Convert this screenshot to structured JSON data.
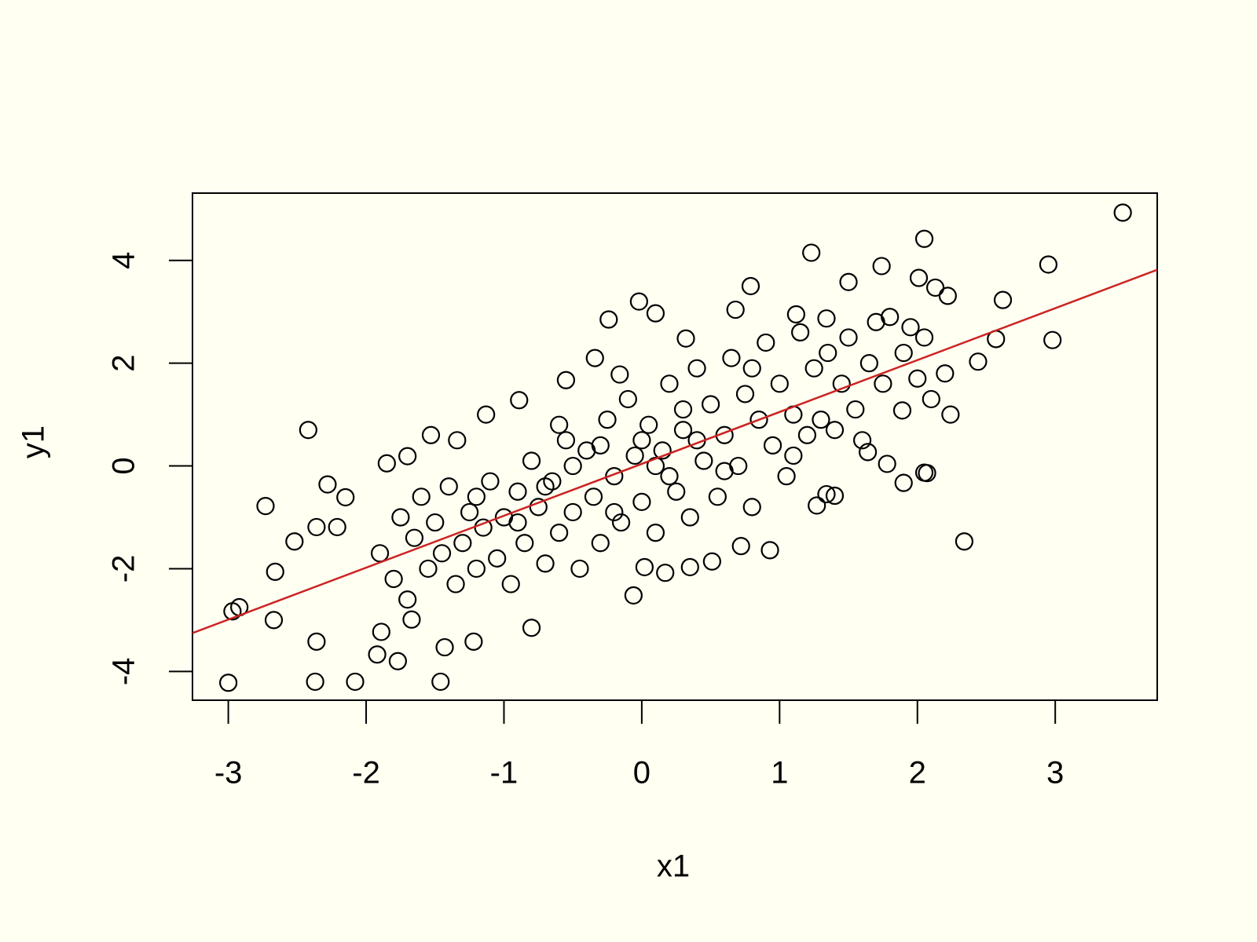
{
  "chart_data": {
    "type": "scatter",
    "x_label": "x1",
    "y_label": "y1",
    "xlim": [
      -3.26,
      3.74
    ],
    "ylim": [
      -4.56,
      5.31
    ],
    "xticks": [
      -3,
      -2,
      -1,
      0,
      1,
      2,
      3
    ],
    "yticks": [
      -4,
      -2,
      0,
      2,
      4
    ],
    "grid": false,
    "fit_line": {
      "intercept": 0.04,
      "slope": 1.01,
      "color": "#cc2222"
    },
    "series": [
      {
        "color": "#000000",
        "x": [
          3.49,
          2.95,
          2.98,
          2.62,
          2.34,
          2.05,
          1.23,
          -3.0,
          -2.37,
          -2.08,
          -1.46,
          -2.97,
          -2.92,
          -2.67,
          -2.66,
          -2.73,
          -2.42,
          -2.52,
          -2.36,
          -2.28,
          -2.36,
          -2.21,
          -2.15,
          -0.8,
          -0.06,
          -0.02,
          0.1,
          0.79,
          1.74,
          1.5,
          2.01,
          2.13,
          2.22,
          2.57,
          2.44,
          2.24,
          1.89,
          2.05,
          2.07,
          1.9,
          1.78,
          1.64,
          0.93,
          0.72,
          0.51,
          0.35,
          0.17,
          0.02,
          -0.24,
          -0.34,
          -1.77,
          -1.92,
          -1.89,
          -1.22,
          -1.43,
          -1.67,
          -1.85,
          -1.7,
          -1.13,
          -1.53,
          -1.34,
          -0.89,
          -0.55,
          -0.16,
          0.32,
          0.68,
          1.12,
          1.34,
          1.34,
          1.4,
          1.27,
          -1.9,
          -1.8,
          -1.75,
          -1.7,
          -1.65,
          -1.6,
          -1.55,
          -1.5,
          -1.45,
          -1.4,
          -1.35,
          -1.3,
          -1.25,
          -1.2,
          -1.15,
          -1.1,
          -1.05,
          -1.0,
          -0.95,
          -0.9,
          -0.85,
          -0.8,
          -0.75,
          -0.7,
          -0.65,
          -0.6,
          -0.55,
          -0.5,
          -0.45,
          -0.4,
          -0.35,
          -0.3,
          -0.25,
          -0.2,
          -0.15,
          -0.1,
          -0.05,
          0.0,
          0.05,
          0.1,
          0.15,
          0.2,
          0.25,
          0.3,
          0.35,
          0.4,
          0.45,
          0.5,
          0.55,
          0.6,
          0.65,
          0.7,
          0.75,
          0.8,
          0.85,
          0.9,
          0.95,
          1.0,
          1.05,
          1.1,
          1.15,
          1.2,
          1.25,
          1.3,
          1.35,
          1.4,
          1.45,
          1.5,
          1.55,
          1.6,
          1.65,
          1.7,
          1.75,
          1.8,
          1.9,
          1.95,
          2.0,
          2.05,
          2.1,
          2.2,
          -0.5,
          -0.3,
          0.1,
          0.2,
          0.4,
          -0.7,
          -0.2,
          0.6,
          0.0,
          0.3,
          -0.6,
          -0.9,
          0.8,
          -1.2,
          1.1
        ],
        "y": [
          4.93,
          3.92,
          2.45,
          3.23,
          -1.47,
          4.42,
          4.15,
          -4.22,
          -4.2,
          -4.2,
          -4.2,
          -2.83,
          -2.75,
          -3.0,
          -2.06,
          -0.78,
          0.7,
          -1.47,
          -1.19,
          -0.36,
          -3.42,
          -1.19,
          -0.61,
          -3.15,
          -2.52,
          3.2,
          2.97,
          3.5,
          3.89,
          3.58,
          3.66,
          3.47,
          3.31,
          2.47,
          2.03,
          1.0,
          1.08,
          -0.13,
          -0.14,
          -0.33,
          0.04,
          0.27,
          -1.64,
          -1.56,
          -1.86,
          -1.97,
          -2.08,
          -1.97,
          2.85,
          2.1,
          -3.8,
          -3.67,
          -3.23,
          -3.42,
          -3.53,
          -2.99,
          0.05,
          0.19,
          1.0,
          0.6,
          0.5,
          1.28,
          1.67,
          1.78,
          2.48,
          3.04,
          2.95,
          2.87,
          -0.55,
          -0.58,
          -0.77,
          -1.7,
          -2.2,
          -1.0,
          -2.6,
          -1.4,
          -0.6,
          -2.0,
          -1.1,
          -1.7,
          -0.4,
          -2.3,
          -1.5,
          -0.9,
          -2.0,
          -1.2,
          -0.3,
          -1.8,
          -1.0,
          -2.3,
          -0.5,
          -1.5,
          0.1,
          -0.8,
          -1.9,
          -0.3,
          -1.3,
          0.5,
          -0.9,
          -2.0,
          0.3,
          -0.6,
          -1.5,
          0.9,
          -0.2,
          -1.1,
          1.3,
          0.2,
          -0.7,
          0.8,
          -1.3,
          0.3,
          1.6,
          -0.5,
          0.7,
          -1.0,
          1.9,
          0.1,
          1.2,
          -0.6,
          0.6,
          2.1,
          0.0,
          1.4,
          -0.8,
          0.9,
          2.4,
          0.4,
          1.6,
          -0.2,
          1.0,
          2.6,
          0.6,
          1.9,
          0.9,
          2.2,
          0.7,
          1.6,
          2.5,
          1.1,
          0.5,
          2.0,
          2.8,
          1.6,
          2.9,
          2.2,
          2.7,
          1.7,
          2.5,
          1.3,
          1.8,
          0.0,
          0.4,
          0.0,
          -0.2,
          0.5,
          -0.4,
          -0.9,
          -0.1,
          0.5,
          1.1,
          0.8,
          -1.1,
          1.9,
          -0.6,
          0.2
        ]
      }
    ]
  }
}
